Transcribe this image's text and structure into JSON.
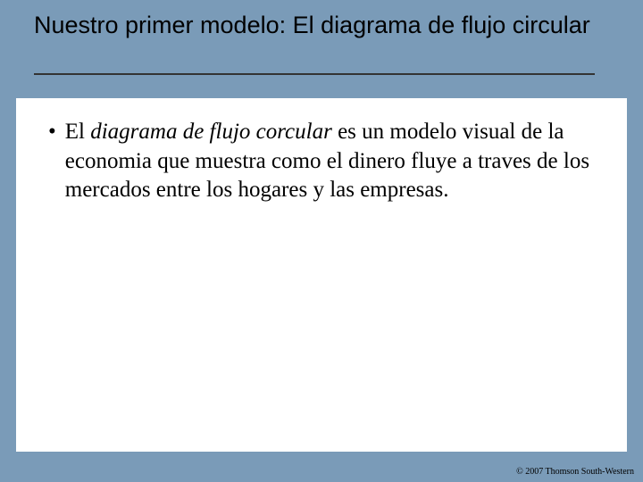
{
  "slide": {
    "background_color": "#7a9bb8",
    "content_background": "#ffffff",
    "title": "Nuestro primer modelo: El diagrama de flujo circular",
    "title_fontsize": 27,
    "title_color": "#000000",
    "underline_color": "#333333",
    "bullet": {
      "marker": "•",
      "prefix": "El ",
      "italic_phrase": "diagrama de flujo corcular",
      "rest": "  es un modelo visual de la economia que muestra como el dinero fluye a traves de los mercados entre los hogares y las empresas.",
      "fontsize": 25,
      "color": "#000000"
    },
    "footer": "© 2007 Thomson South-Western",
    "footer_fontsize": 10
  }
}
